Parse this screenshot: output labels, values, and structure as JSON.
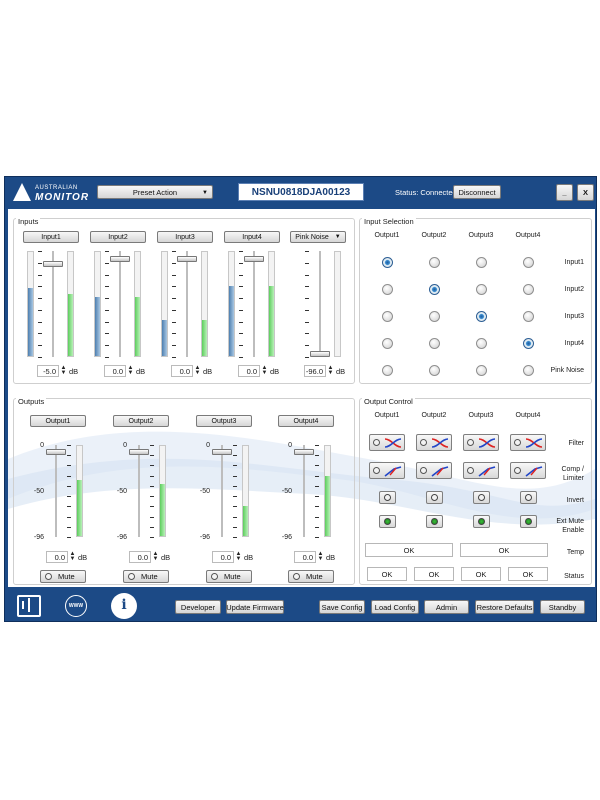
{
  "brand": {
    "line1": "AUSTRALIAN",
    "line2": "MONITOR"
  },
  "topbar": {
    "preset_label": "Preset Action",
    "serial": "NSNU0818DJA00123",
    "status": "Status: Connected",
    "disconnect": "Disconnect",
    "minimize": "_",
    "close": "X"
  },
  "inputs": {
    "title": "Inputs",
    "channels": [
      {
        "label": "Input1",
        "value": "-5.0",
        "unit": "dB",
        "fader": 0.9,
        "meter_left": 0.65,
        "meter_right": 0.6
      },
      {
        "label": "Input2",
        "value": "0.0",
        "unit": "dB",
        "fader": 0.95,
        "meter_left": 0.57,
        "meter_right": 0.57
      },
      {
        "label": "Input3",
        "value": "0.0",
        "unit": "dB",
        "fader": 0.95,
        "meter_left": 0.35,
        "meter_right": 0.35
      },
      {
        "label": "Input4",
        "value": "0.0",
        "unit": "dB",
        "fader": 0.95,
        "meter_left": 0.67,
        "meter_right": 0.67
      },
      {
        "label": "Pink Noise",
        "value": "-96.0",
        "unit": "dB",
        "fader": 0.0
      }
    ]
  },
  "outputs": {
    "title": "Outputs",
    "scale": [
      "0",
      "-50",
      "-96"
    ],
    "channels": [
      {
        "label": "Output1",
        "value": "0.0",
        "unit": "dB",
        "mute": "Mute",
        "fader": 0.95,
        "meter": 0.62
      },
      {
        "label": "Output2",
        "value": "0.0",
        "unit": "dB",
        "mute": "Mute",
        "fader": 0.95,
        "meter": 0.58
      },
      {
        "label": "Output3",
        "value": "0.0",
        "unit": "dB",
        "mute": "Mute",
        "fader": 0.95,
        "meter": 0.33
      },
      {
        "label": "Output4",
        "value": "0.0",
        "unit": "dB",
        "mute": "Mute",
        "fader": 0.95,
        "meter": 0.67
      }
    ]
  },
  "input_selection": {
    "title": "Input Selection",
    "columns": [
      "Output1",
      "Output2",
      "Output3",
      "Output4"
    ],
    "rows": [
      "Input1",
      "Input2",
      "Input3",
      "Input4",
      "Pink Noise"
    ],
    "selected": [
      0,
      1,
      2,
      3
    ]
  },
  "output_control": {
    "title": "Output Control",
    "columns": [
      "Output1",
      "Output2",
      "Output3",
      "Output4"
    ],
    "rows": {
      "filter": "Filter",
      "comp": "Comp /\nLimiter",
      "invert": "Invert",
      "extmute": "Ext Mute\nEnable",
      "temp": "Temp",
      "status": "Status"
    },
    "temp": [
      "OK",
      "OK"
    ],
    "status": [
      "OK",
      "OK",
      "OK",
      "OK"
    ]
  },
  "bottombar": {
    "www": "WWW",
    "info": "i",
    "buttons": [
      "Developer",
      "Update Firmware",
      "Save Config",
      "Load Config",
      "Admin",
      "Restore Defaults",
      "Standby"
    ]
  },
  "colors": {
    "frame": "#1c4a86",
    "meter_blue": "#4d7fb0",
    "meter_green": "#5dce5d",
    "radio_on": "#2a78c2"
  }
}
